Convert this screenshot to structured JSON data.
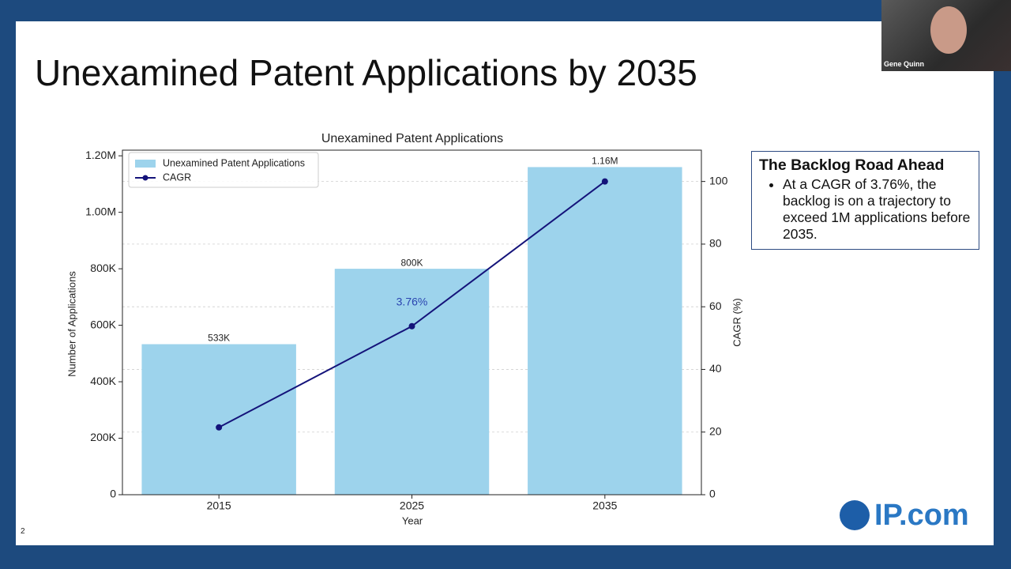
{
  "slide": {
    "title": "Unexamined Patent Applications by 2035",
    "page_number": "2"
  },
  "chart_data": {
    "type": "bar",
    "title": "Unexamined Patent Applications",
    "x_label": "Year",
    "y_label": "Number of Applications",
    "y2_label": "CAGR (%)",
    "categories": [
      "2015",
      "2025",
      "2035"
    ],
    "series": [
      {
        "name": "Unexamined Patent Applications",
        "type": "bar",
        "color": "#9dd3ec",
        "values": [
          533000,
          800000,
          1160000
        ],
        "value_labels": [
          "533K",
          "800K",
          "1.16M"
        ]
      },
      {
        "name": "CAGR",
        "type": "line",
        "axis": "y2",
        "color": "#14137a",
        "values": [
          21.5,
          53.8,
          100
        ]
      }
    ],
    "annotations": [
      {
        "text": "3.76%",
        "color": "#2a44b0"
      }
    ],
    "ylim": [
      0,
      1220000
    ],
    "yticks": [
      0,
      {
        "value": 200000,
        "label": "200K"
      },
      {
        "value": 400000,
        "label": "400K"
      },
      {
        "value": 600000,
        "label": "600K"
      },
      {
        "value": 800000,
        "label": "800K"
      },
      {
        "value": 1000000,
        "label": "1.00M"
      },
      {
        "value": 1200000,
        "label": "1.20M"
      }
    ],
    "y2lim": [
      0,
      110
    ],
    "y2ticks": [
      0,
      20,
      40,
      60,
      80,
      100
    ],
    "grid": true,
    "legend": "upper-left"
  },
  "textbox": {
    "heading": "The Backlog Road Ahead",
    "bullets": [
      "At a CAGR of 3.76%, the backlog is on a trajectory to exceed 1M applications before 2035."
    ]
  },
  "webcam": {
    "name": "Gene Quinn"
  },
  "logo": {
    "text": "IP.com"
  }
}
